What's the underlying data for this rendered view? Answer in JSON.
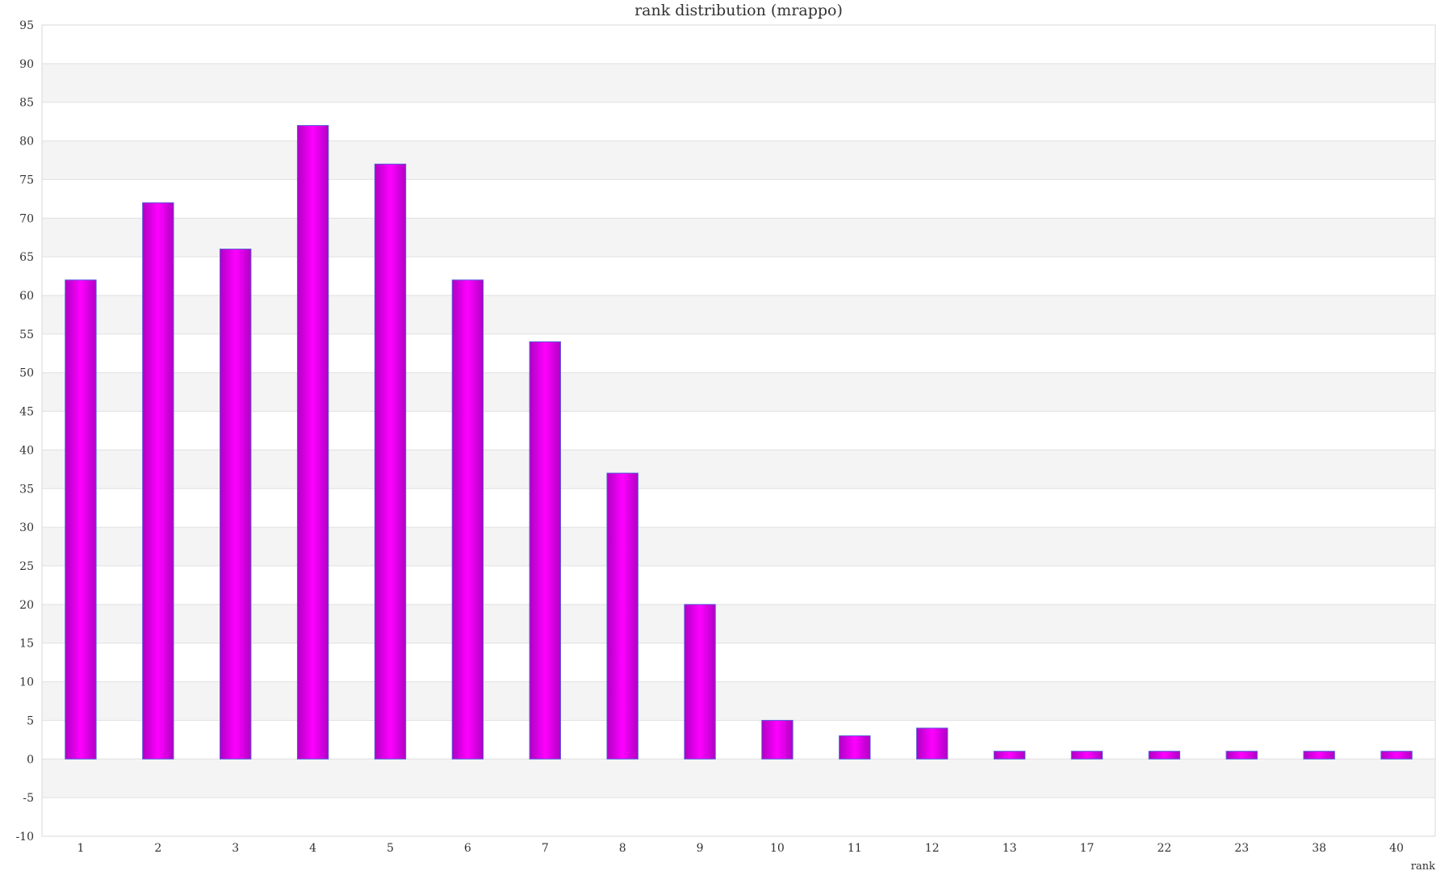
{
  "chart_data": {
    "type": "bar",
    "title": "rank distribution (mrappo)",
    "xlabel": "rank",
    "ylabel": "",
    "categories": [
      "1",
      "2",
      "3",
      "4",
      "5",
      "6",
      "7",
      "8",
      "9",
      "10",
      "11",
      "12",
      "13",
      "17",
      "22",
      "23",
      "38",
      "40"
    ],
    "values": [
      62,
      72,
      66,
      82,
      77,
      62,
      54,
      37,
      20,
      5,
      3,
      4,
      1,
      1,
      1,
      1,
      1,
      1
    ],
    "ylim": [
      -10,
      95
    ],
    "ytick_step": 5,
    "grid": "horizontal-bands",
    "legend": "none",
    "colors": {
      "bar_center": "#ff00ff",
      "bar_edge": "#b000c4",
      "bar_outline": "#5a5ad8",
      "band": "#f4f4f4",
      "gridline": "#e0e0e0",
      "frame": "#d8d8d8"
    }
  }
}
